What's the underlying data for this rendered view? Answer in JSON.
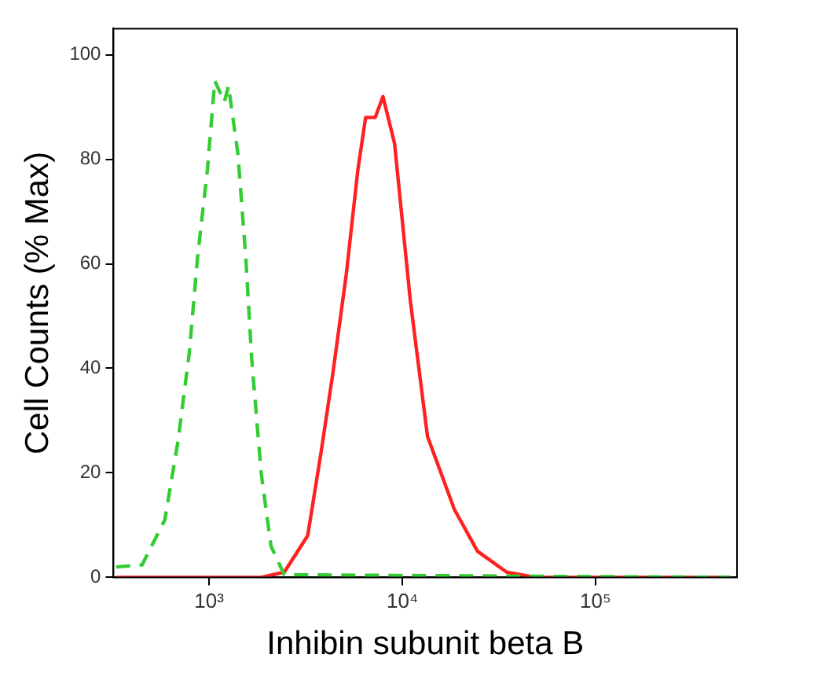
{
  "chart_data": {
    "type": "line",
    "xlabel": "Inhibin subunit beta B",
    "ylabel": "Cell Counts (% Max)",
    "log": "x",
    "grid": false,
    "legend": false,
    "marker": "none",
    "xlim": [
      320,
      540000
    ],
    "ylim": [
      0,
      105
    ],
    "xticks": [
      {
        "value": 1000,
        "label": "10³"
      },
      {
        "value": 10000,
        "label": "10⁴"
      },
      {
        "value": 100000,
        "label": "10⁵"
      }
    ],
    "yticks": [
      0,
      20,
      40,
      60,
      80,
      100
    ],
    "series": [
      {
        "color": "#33cc33",
        "line_style": "dashed",
        "x": [
          330,
          450,
          590,
          690,
          790,
          870,
          980,
          1070,
          1200,
          1260,
          1410,
          1550,
          1660,
          1860,
          2090,
          2450,
          500000
        ],
        "values": [
          2,
          2.4,
          11,
          26,
          43,
          61,
          78,
          95,
          91,
          94,
          81,
          61,
          42,
          20,
          6,
          0.5,
          0
        ]
      },
      {
        "color": "#ff2020",
        "line_style": "solid",
        "x": [
          330,
          1860,
          2450,
          3240,
          3800,
          4370,
          5130,
          5890,
          6460,
          7240,
          7940,
          9120,
          11000,
          13500,
          18600,
          24500,
          34700,
          49000,
          500000
        ],
        "values": [
          0,
          0,
          1,
          8,
          24,
          39,
          58,
          78,
          88,
          88,
          92,
          83,
          53,
          27,
          13,
          5,
          1,
          0,
          0
        ]
      }
    ]
  }
}
